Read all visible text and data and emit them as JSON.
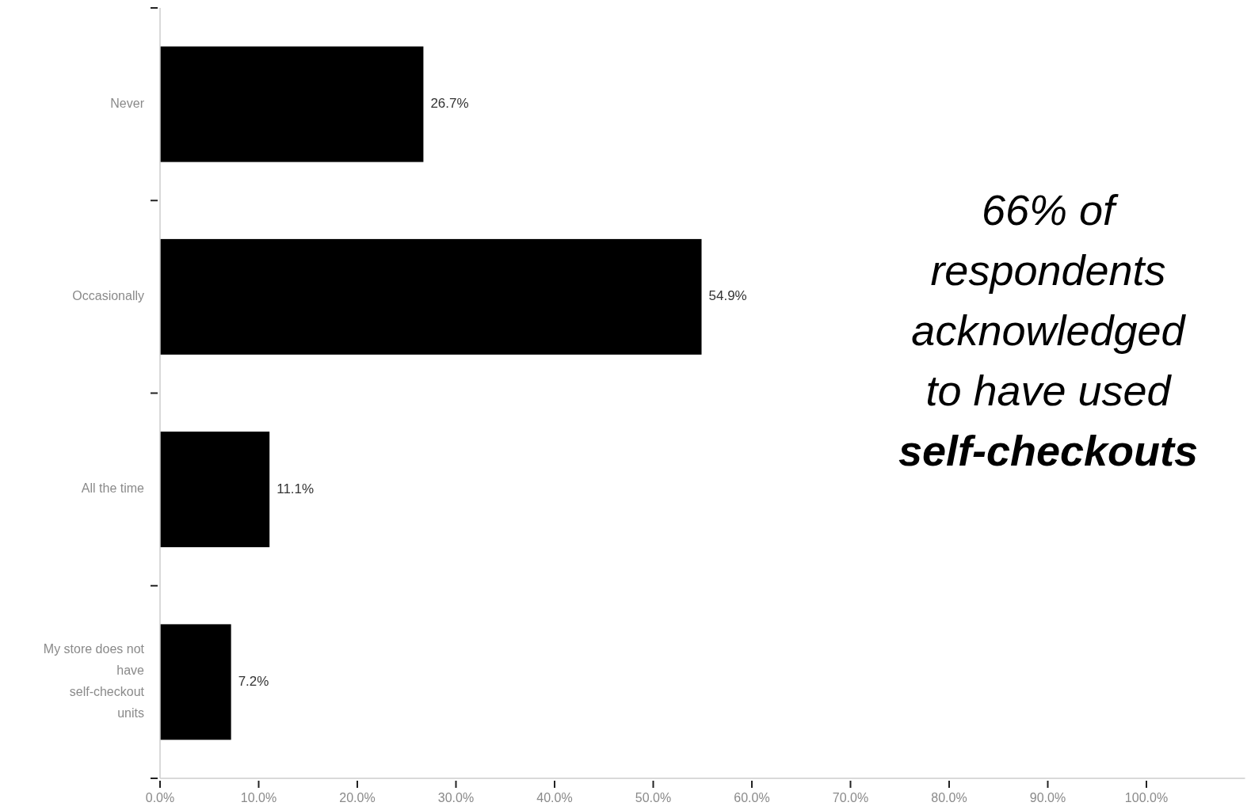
{
  "chart_data": {
    "type": "bar",
    "orientation": "horizontal",
    "categories": [
      "Never",
      "Occasionally",
      "All the time",
      "My store does not have self-checkout units"
    ],
    "values": [
      26.7,
      54.9,
      11.1,
      7.2
    ],
    "color": "#000000",
    "value_labels": [
      "26.7%",
      "54.9%",
      "11.1%",
      "7.2%"
    ],
    "xlim": [
      0,
      110
    ],
    "xticks": [
      {
        "value": 0,
        "label": "0.0%"
      },
      {
        "value": 10,
        "label": "10.0%"
      },
      {
        "value": 20,
        "label": "20.0%"
      },
      {
        "value": 30,
        "label": "30.0%"
      },
      {
        "value": 40,
        "label": "40.0%"
      },
      {
        "value": 50,
        "label": "50.0%"
      },
      {
        "value": 60,
        "label": "60.0%"
      },
      {
        "value": 70,
        "label": "70.0%"
      },
      {
        "value": 80,
        "label": "80.0%"
      },
      {
        "value": 90,
        "label": "90.0%"
      },
      {
        "value": 100,
        "label": "100.0%"
      }
    ],
    "grid": false,
    "annotations": [
      "66% of respondents acknowledged to have used",
      "self-checkouts"
    ]
  }
}
